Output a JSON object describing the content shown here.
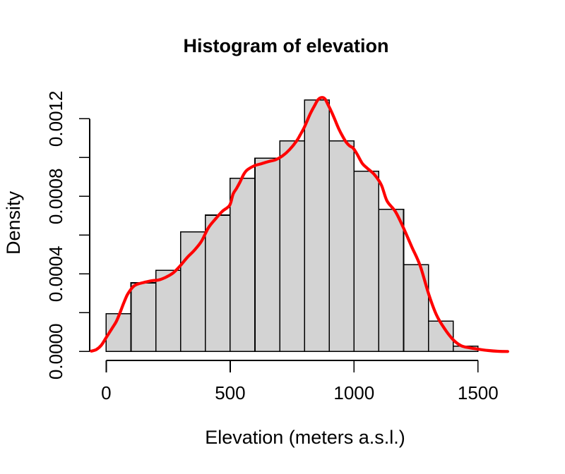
{
  "chart_data": {
    "type": "bar",
    "subtype": "histogram-with-density-overlay",
    "title": "Histogram of elevation",
    "xlabel": "Elevation (meters a.s.l.)",
    "ylabel": "Density",
    "grid": false,
    "legend": null,
    "background_color": "#ffffff",
    "bar_fill_color": "#d3d3d3",
    "bar_stroke_color": "#000000",
    "density_line_color": "#ff0000",
    "axis_color": "#000000",
    "bin_width": 100,
    "xlim": [
      -100,
      1650
    ],
    "ylim": [
      0,
      0.00132
    ],
    "x_axis": {
      "label": "Elevation (meters a.s.l.)",
      "ticks": [
        {
          "v": 0,
          "t": "0"
        },
        {
          "v": 500,
          "t": "500"
        },
        {
          "v": 1000,
          "t": "1000"
        },
        {
          "v": 1500,
          "t": "1500"
        }
      ]
    },
    "y_axis": {
      "label": "Density",
      "ticks": [
        {
          "v": 0.0,
          "t": "0.0000"
        },
        {
          "v": 0.0002,
          "t": ""
        },
        {
          "v": 0.0004,
          "t": "0.0004"
        },
        {
          "v": 0.0006,
          "t": ""
        },
        {
          "v": 0.0008,
          "t": "0.0008"
        },
        {
          "v": 0.001,
          "t": ""
        },
        {
          "v": 0.0012,
          "t": "0.0012"
        }
      ]
    },
    "bars": [
      {
        "from": 0,
        "to": 100,
        "density": 0.000194
      },
      {
        "from": 100,
        "to": 200,
        "density": 0.000354
      },
      {
        "from": 200,
        "to": 300,
        "density": 0.000418
      },
      {
        "from": 300,
        "to": 400,
        "density": 0.000616
      },
      {
        "from": 400,
        "to": 500,
        "density": 0.000703
      },
      {
        "from": 500,
        "to": 600,
        "density": 0.000893
      },
      {
        "from": 600,
        "to": 700,
        "density": 0.000996
      },
      {
        "from": 700,
        "to": 800,
        "density": 0.001085
      },
      {
        "from": 800,
        "to": 900,
        "density": 0.001297
      },
      {
        "from": 900,
        "to": 1000,
        "density": 0.001085
      },
      {
        "from": 1000,
        "to": 1100,
        "density": 0.000929
      },
      {
        "from": 1100,
        "to": 1200,
        "density": 0.000733
      },
      {
        "from": 1200,
        "to": 1300,
        "density": 0.000448
      },
      {
        "from": 1300,
        "to": 1400,
        "density": 0.000157
      },
      {
        "from": 1400,
        "to": 1500,
        "density": 2.7e-05
      }
    ],
    "density_curve": [
      [
        -60,
        2e-06
      ],
      [
        -40,
        1e-05
      ],
      [
        -20,
        3.2e-05
      ],
      [
        0,
        7.2e-05
      ],
      [
        14,
        0.0001
      ],
      [
        28,
        0.000128
      ],
      [
        42,
        0.000158
      ],
      [
        56,
        0.000201
      ],
      [
        70,
        0.000248
      ],
      [
        85,
        0.000292
      ],
      [
        100,
        0.000321
      ],
      [
        113,
        0.000339
      ],
      [
        128,
        0.000348
      ],
      [
        156,
        0.000357
      ],
      [
        185,
        0.000365
      ],
      [
        213,
        0.000369
      ],
      [
        241,
        0.000383
      ],
      [
        270,
        0.000405
      ],
      [
        298,
        0.000441
      ],
      [
        327,
        0.000485
      ],
      [
        355,
        0.000521
      ],
      [
        384,
        0.000568
      ],
      [
        412,
        0.000637
      ],
      [
        440,
        0.000682
      ],
      [
        468,
        0.000722
      ],
      [
        498,
        0.000754
      ],
      [
        512,
        0.000812
      ],
      [
        526,
        0.000841
      ],
      [
        540,
        0.000874
      ],
      [
        555,
        0.000914
      ],
      [
        569,
        0.000936
      ],
      [
        597,
        0.000957
      ],
      [
        626,
        0.000968
      ],
      [
        654,
        0.000979
      ],
      [
        683,
        0.000988
      ],
      [
        711,
        0.001008
      ],
      [
        740,
        0.001041
      ],
      [
        768,
        0.001085
      ],
      [
        782,
        0.001115
      ],
      [
        797,
        0.00115
      ],
      [
        811,
        0.00119
      ],
      [
        825,
        0.00123
      ],
      [
        840,
        0.001266
      ],
      [
        854,
        0.001297
      ],
      [
        868,
        0.001309
      ],
      [
        882,
        0.001303
      ],
      [
        896,
        0.00127
      ],
      [
        911,
        0.00123
      ],
      [
        925,
        0.001188
      ],
      [
        939,
        0.001146
      ],
      [
        954,
        0.001109
      ],
      [
        968,
        0.001079
      ],
      [
        982,
        0.00106
      ],
      [
        996,
        0.001049
      ],
      [
        1011,
        0.00102
      ],
      [
        1033,
        0.00097
      ],
      [
        1053,
        0.000945
      ],
      [
        1082,
        0.000912
      ],
      [
        1110,
        0.000859
      ],
      [
        1133,
        0.000776
      ],
      [
        1167,
        0.000721
      ],
      [
        1199,
        0.000638
      ],
      [
        1233,
        0.000539
      ],
      [
        1267,
        0.000441
      ],
      [
        1301,
        0.000296
      ],
      [
        1333,
        0.000187
      ],
      [
        1367,
        0.000114
      ],
      [
        1401,
        5.9e-05
      ],
      [
        1432,
        3e-05
      ],
      [
        1466,
        1.9e-05
      ],
      [
        1500,
        1.2e-05
      ],
      [
        1540,
        5e-06
      ],
      [
        1580,
        1e-06
      ],
      [
        1620,
        0
      ]
    ]
  }
}
